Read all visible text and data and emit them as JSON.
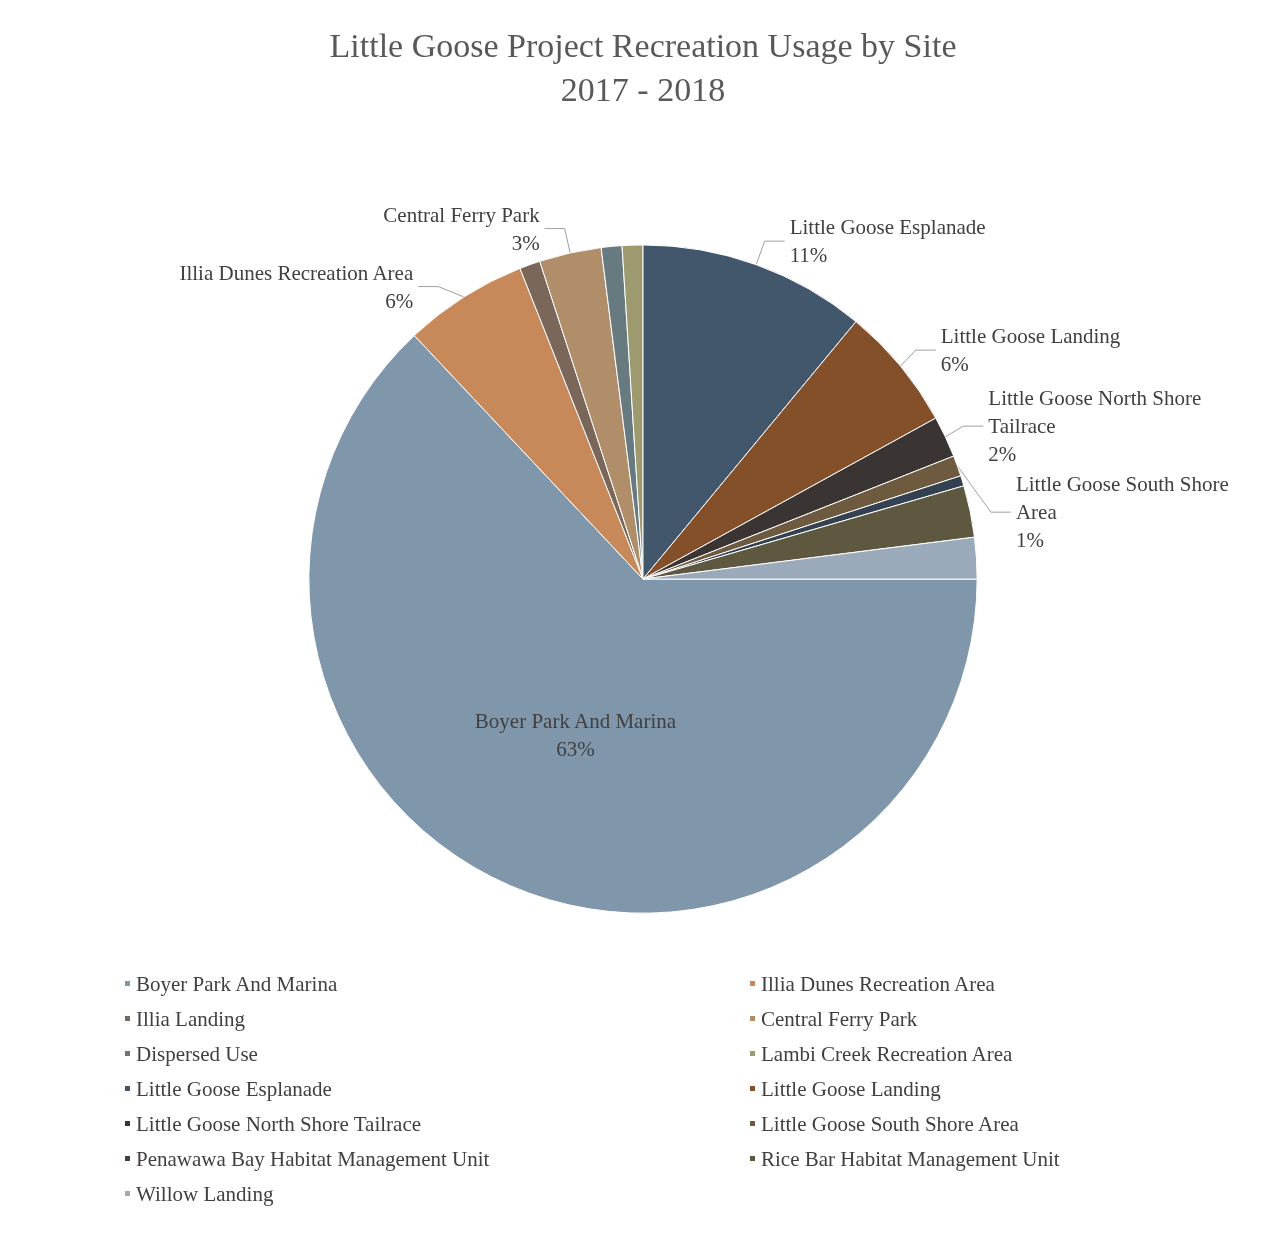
{
  "chart_data": {
    "type": "pie",
    "title": "Little Goose Project Recreation Usage by Site\n2017 - 2018",
    "categories": [
      "Boyer Park And Marina",
      "Illia Dunes Recreation Area",
      "Illia Landing",
      "Central Ferry Park",
      "Dispersed Use",
      "Lambi Creek Recreation Area",
      "Little Goose Esplanade",
      "Little Goose Landing",
      "Little Goose North Shore Tailrace",
      "Little Goose South Shore Area",
      "Penawawa Bay Habitat Management Unit",
      "Rice Bar Habitat Management Unit",
      "Willow Landing"
    ],
    "values": [
      63,
      6,
      1,
      3,
      1,
      1,
      11,
      6,
      2,
      1,
      0.5,
      2.5,
      2
    ],
    "value_labels": [
      "63%",
      "6%",
      null,
      "3%",
      null,
      null,
      "11%",
      "6%",
      "2%",
      "1%",
      null,
      null,
      null
    ],
    "colors": [
      "#7f96ab",
      "#c8895a",
      "#7a675a",
      "#b08e6a",
      "#677a80",
      "#9c9a6e",
      "#43576c",
      "#83502a",
      "#3a3432",
      "#6e5a3e",
      "#334150",
      "#5e5840",
      "#9aaabb"
    ],
    "legend": "bottom"
  }
}
